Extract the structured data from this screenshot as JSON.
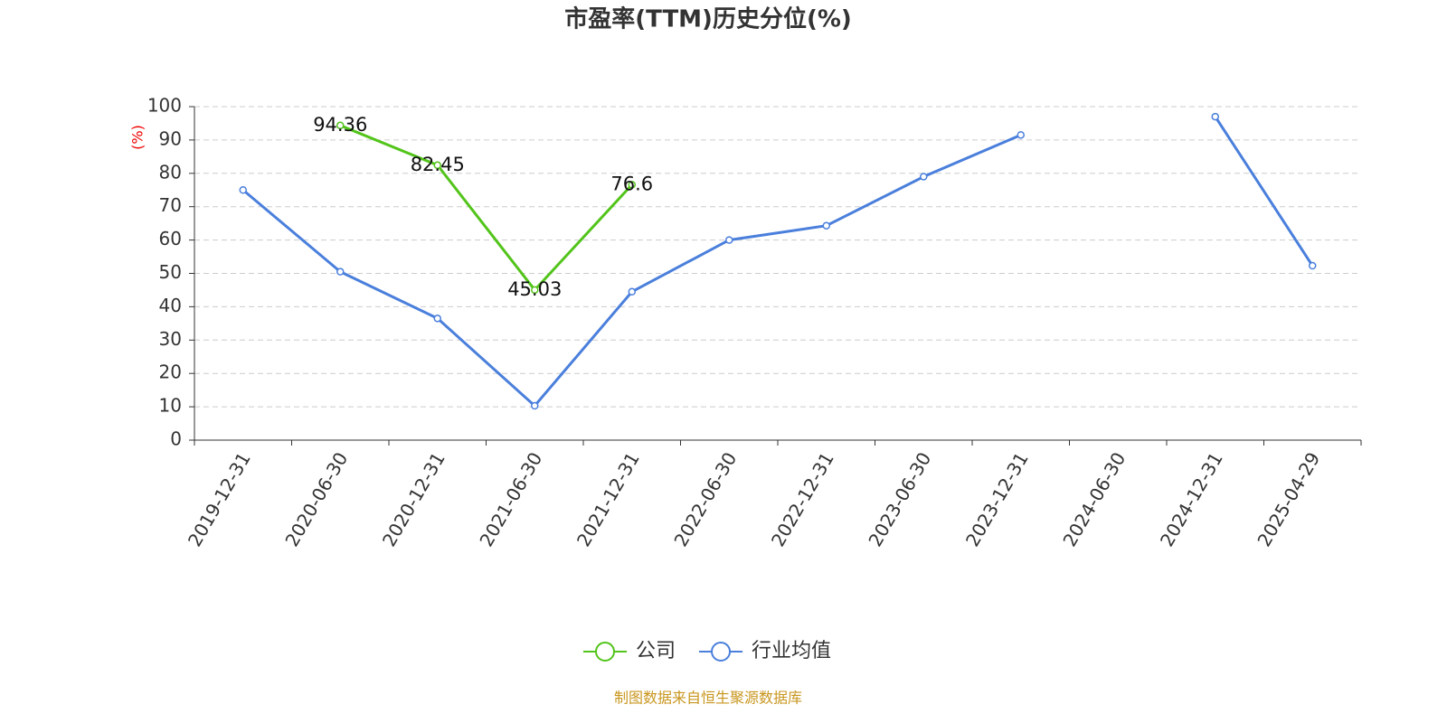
{
  "chart_data": {
    "type": "line",
    "title": "市盈率(TTM)历史分位(%)",
    "y_label": "(%)",
    "categories": [
      "2019-12-31",
      "2020-06-30",
      "2020-12-31",
      "2021-06-30",
      "2021-12-31",
      "2022-06-30",
      "2022-12-31",
      "2023-06-30",
      "2023-12-31",
      "2024-06-30",
      "2024-12-31",
      "2025-04-29"
    ],
    "series": [
      {
        "name": "公司",
        "color": "#52c41a",
        "labels": true,
        "values": [
          null,
          94.36,
          82.45,
          45.03,
          76.6,
          null,
          null,
          null,
          null,
          null,
          null,
          null
        ]
      },
      {
        "name": "行业均值",
        "color": "#4a7fdc",
        "labels": false,
        "values": [
          75,
          50.5,
          36.5,
          10.3,
          44.5,
          60,
          64.3,
          79,
          91.5,
          null,
          97,
          52.3
        ]
      }
    ],
    "ylim": [
      0,
      100
    ],
    "yticks": [
      0,
      10,
      20,
      30,
      40,
      50,
      60,
      70,
      80,
      90,
      100
    ],
    "grid": true,
    "legend": "bottom",
    "source": "制图数据来自恒生聚源数据库"
  }
}
